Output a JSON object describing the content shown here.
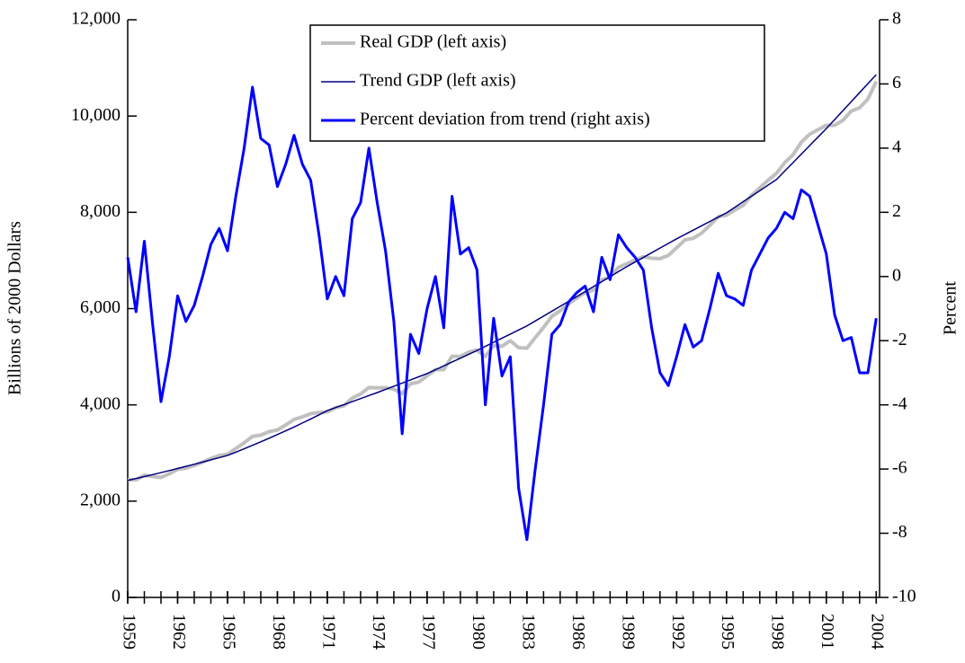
{
  "chart_data": {
    "type": "line",
    "y_label": "Billions of 2000 Dollars",
    "y2_label": "Percent",
    "legend": "upper center",
    "xlim": [
      1959,
      2004.2
    ],
    "xticks": [
      1959,
      1962,
      1965,
      1968,
      1971,
      1974,
      1977,
      1980,
      1983,
      1986,
      1989,
      1992,
      1995,
      1998,
      2001,
      2004
    ],
    "x_minor_tick_interval": 1,
    "ylim": [
      0,
      12000
    ],
    "yticks": [
      0,
      {
        "value": 2000,
        "label": "2,000"
      },
      {
        "value": 4000,
        "label": "4,000"
      },
      {
        "value": 6000,
        "label": "6,000"
      },
      {
        "value": 8000,
        "label": "8,000"
      },
      {
        "value": 10000,
        "label": "10,000"
      },
      {
        "value": 12000,
        "label": "12,000"
      }
    ],
    "y2lim": [
      -10,
      8
    ],
    "y2ticks": [
      -10,
      -8,
      -6,
      -4,
      -2,
      0,
      2,
      4,
      6,
      8
    ],
    "x": [
      1959,
      1959.5,
      1960,
      1960.5,
      1961,
      1961.5,
      1962,
      1962.5,
      1963,
      1963.5,
      1964,
      1964.5,
      1965,
      1965.5,
      1966,
      1966.5,
      1967,
      1967.5,
      1968,
      1968.5,
      1969,
      1969.5,
      1970,
      1970.5,
      1971,
      1971.5,
      1972,
      1972.5,
      1973,
      1973.5,
      1974,
      1974.5,
      1975,
      1975.5,
      1976,
      1976.5,
      1977,
      1977.5,
      1978,
      1978.5,
      1979,
      1979.5,
      1980,
      1980.5,
      1981,
      1981.5,
      1982,
      1982.5,
      1983,
      1983.5,
      1984,
      1984.5,
      1985,
      1985.5,
      1986,
      1986.5,
      1987,
      1987.5,
      1988,
      1988.5,
      1989,
      1989.5,
      1990,
      1990.5,
      1991,
      1991.5,
      1992,
      1992.5,
      1993,
      1993.5,
      1994,
      1994.5,
      1995,
      1995.5,
      1996,
      1996.5,
      1997,
      1997.5,
      1998,
      1998.5,
      1999,
      1999.5,
      2000,
      2000.5,
      2001,
      2001.5,
      2002,
      2002.5,
      2003,
      2003.5,
      2004
    ],
    "series": [
      {
        "name": "Real GDP (left axis)",
        "color": "#c0c0c0",
        "width": 4,
        "axis": "y",
        "values": [
          2445,
          2443,
          2538,
          2513,
          2492,
          2569,
          2662,
          2684,
          2741,
          2811,
          2886,
          2947,
          2974,
          3093,
          3212,
          3345,
          3371,
          3443,
          3478,
          3582,
          3697,
          3750,
          3817,
          3841,
          3853,
          3943,
          3981,
          4141,
          4225,
          4361,
          4353,
          4356,
          4326,
          4235,
          4437,
          4474,
          4604,
          4730,
          4733,
          5012,
          5005,
          5095,
          5140,
          5006,
          5231,
          5218,
          5333,
          5188,
          5178,
          5397,
          5609,
          5838,
          5956,
          6099,
          6219,
          6334,
          6386,
          6599,
          6656,
          6855,
          6932,
          7009,
          7077,
          7045,
          7039,
          7103,
          7264,
          7427,
          7462,
          7566,
          7732,
          7908,
          7942,
          8048,
          8146,
          8352,
          8509,
          8668,
          8810,
          9034,
          9196,
          9459,
          9622,
          9716,
          9808,
          9808,
          9911,
          10104,
          10172,
          10353,
          10719
        ]
      },
      {
        "name": "Trend GDP (left axis)",
        "color": "#000080",
        "width": 1.5,
        "axis": "y",
        "values": [
          2430,
          2470,
          2510,
          2551,
          2593,
          2635,
          2678,
          2722,
          2766,
          2811,
          2857,
          2903,
          2950,
          3018,
          3088,
          3159,
          3232,
          3307,
          3383,
          3461,
          3541,
          3623,
          3706,
          3792,
          3880,
          3943,
          4005,
          4068,
          4130,
          4193,
          4255,
          4321,
          4387,
          4453,
          4518,
          4584,
          4650,
          4730,
          4810,
          4890,
          4970,
          5050,
          5130,
          5215,
          5300,
          5385,
          5470,
          5555,
          5640,
          5742,
          5843,
          5945,
          6047,
          6148,
          6250,
          6353,
          6457,
          6560,
          6663,
          6767,
          6870,
          6967,
          7063,
          7160,
          7257,
          7353,
          7450,
          7540,
          7630,
          7720,
          7810,
          7900,
          7990,
          8105,
          8220,
          8335,
          8450,
          8565,
          8680,
          8857,
          9033,
          9210,
          9387,
          9563,
          9740,
          9927,
          10113,
          10300,
          10487,
          10673,
          10860
        ]
      },
      {
        "name": "Percent deviation from trend (right axis)",
        "color": "#0000ff",
        "width": 3,
        "axis": "y2",
        "values": [
          0.6,
          -1.1,
          1.1,
          -1.5,
          -3.9,
          -2.5,
          -0.6,
          -1.4,
          -0.9,
          0,
          1.0,
          1.5,
          0.8,
          2.5,
          4.0,
          5.9,
          4.3,
          4.1,
          2.8,
          3.5,
          4.4,
          3.5,
          3.0,
          1.3,
          -0.7,
          0,
          -0.6,
          1.8,
          2.3,
          4.0,
          2.3,
          0.8,
          -1.4,
          -4.9,
          -1.8,
          -2.4,
          -1.0,
          0,
          -1.6,
          2.5,
          0.7,
          0.9,
          0.2,
          -4.0,
          -1.3,
          -3.1,
          -2.5,
          -6.6,
          -8.2,
          -6.0,
          -4.0,
          -1.8,
          -1.5,
          -0.8,
          -0.5,
          -0.3,
          -1.1,
          0.6,
          -0.1,
          1.3,
          0.9,
          0.6,
          0.2,
          -1.6,
          -3.0,
          -3.4,
          -2.5,
          -1.5,
          -2.2,
          -2.0,
          -1.0,
          0.1,
          -0.6,
          -0.7,
          -0.9,
          0.2,
          0.7,
          1.2,
          1.5,
          2.0,
          1.8,
          2.7,
          2.5,
          1.6,
          0.7,
          -1.2,
          -2.0,
          -1.9,
          -3.0,
          -3.0,
          -1.3
        ]
      }
    ]
  }
}
